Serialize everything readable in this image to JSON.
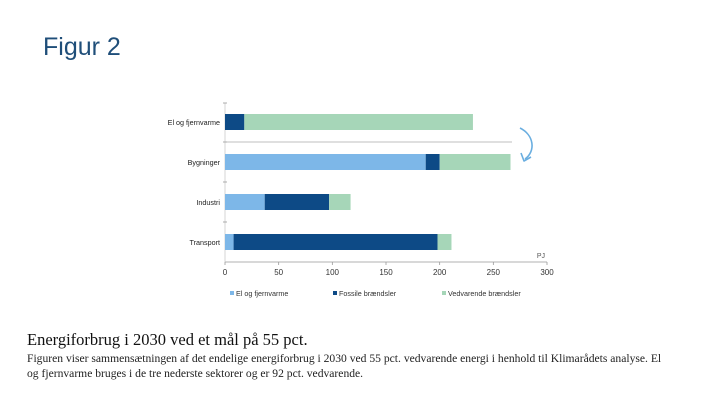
{
  "slide": {
    "title": "Figur 2",
    "caption_title": "Energiforbrug i 2030 ved et mål på 55 pct.",
    "caption_body": "Figuren viser sammensætningen af det endelige energiforbrug i 2030 ved 55 pct. vedvarende energi i henhold til Klimarådets analyse. El og fjernvarme bruges i de tre nederste sektorer og er 92 pct. vedvarende."
  },
  "chart_data": {
    "type": "bar",
    "orientation": "horizontal",
    "stacked": true,
    "categories": [
      "El og fjernvarme",
      "Bygninger",
      "Industri",
      "Transport"
    ],
    "series": [
      {
        "name": "El og fjernvarme",
        "color": "#7db7e8",
        "values": [
          0,
          187,
          37,
          8
        ]
      },
      {
        "name": "Fossile brændsler",
        "color": "#0d4a86",
        "values": [
          18,
          13,
          60,
          190
        ]
      },
      {
        "name": "Vedvarende brændsler",
        "color": "#a6d6b8",
        "values": [
          213,
          66,
          20,
          13
        ]
      }
    ],
    "xlabel": "",
    "unit_label": "PJ",
    "xlim": [
      0,
      300
    ],
    "xticks": [
      0,
      50,
      100,
      150,
      200,
      250,
      300
    ],
    "legend_position": "bottom",
    "annotation": {
      "type": "curved-arrow",
      "color": "#6aaee0",
      "meaning": "El og fjernvarme flows into the lower sectors"
    }
  }
}
